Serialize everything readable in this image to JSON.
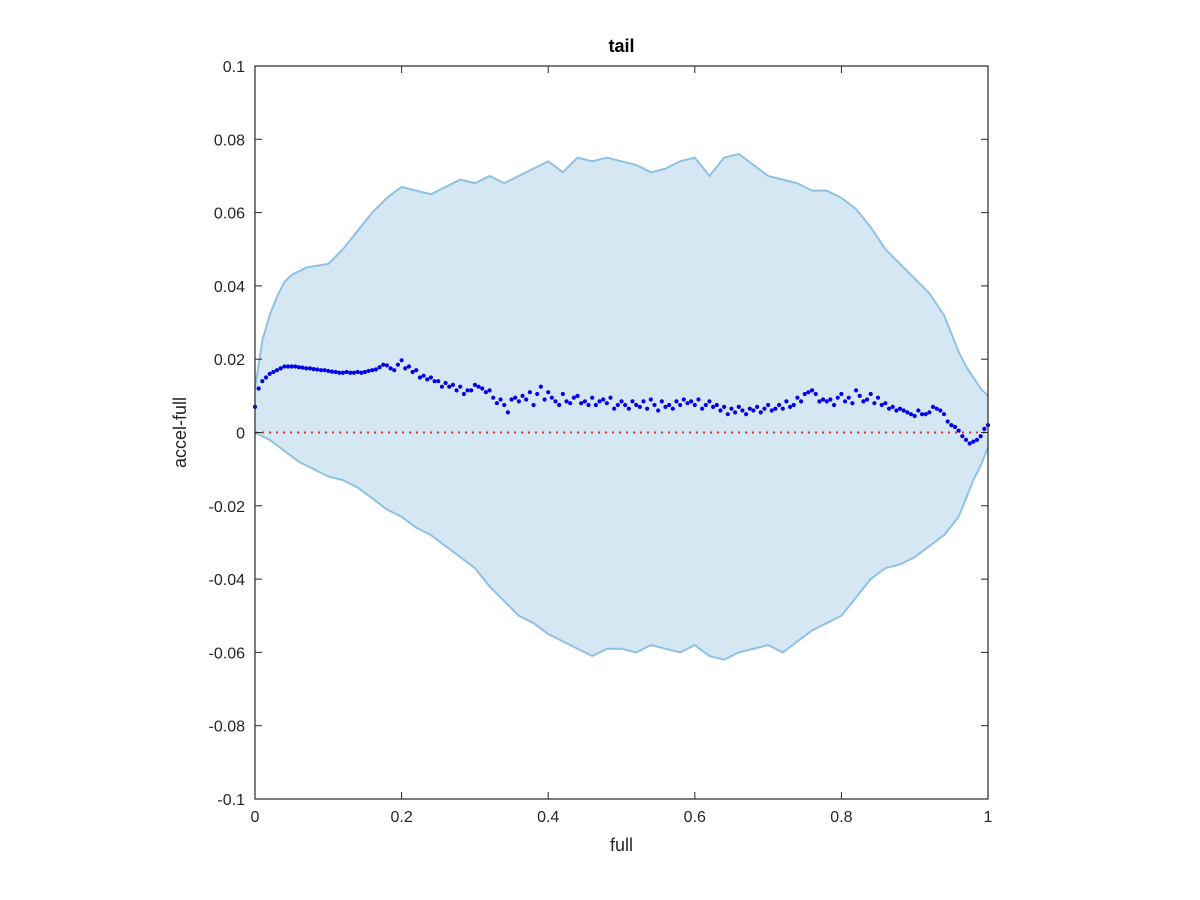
{
  "chart_data": {
    "type": "scatter",
    "title": "tail",
    "xlabel": "full",
    "ylabel": "accel-full",
    "xlim": [
      0,
      1
    ],
    "ylim": [
      -0.1,
      0.1
    ],
    "x_ticks": [
      "0",
      "0.2",
      "0.4",
      "0.6",
      "0.8",
      "1"
    ],
    "y_ticks": [
      "0.1",
      "0.08",
      "0.06",
      "0.04",
      "0.02",
      "0",
      "-0.02",
      "-0.04",
      "-0.06",
      "-0.08",
      "-0.1"
    ],
    "grid": false,
    "reference_line": {
      "y": 0,
      "style": "dotted",
      "color": "#e8312f"
    },
    "band": {
      "fill_color": "#d6e7f4",
      "edge_color": "#8ec2e2",
      "upper": [
        [
          0,
          0.012
        ],
        [
          0.01,
          0.025
        ],
        [
          0.02,
          0.032
        ],
        [
          0.03,
          0.037
        ],
        [
          0.04,
          0.041
        ],
        [
          0.05,
          0.043
        ],
        [
          0.07,
          0.045
        ],
        [
          0.1,
          0.046
        ],
        [
          0.12,
          0.05
        ],
        [
          0.14,
          0.055
        ],
        [
          0.16,
          0.06
        ],
        [
          0.18,
          0.064
        ],
        [
          0.2,
          0.067
        ],
        [
          0.22,
          0.066
        ],
        [
          0.24,
          0.065
        ],
        [
          0.26,
          0.067
        ],
        [
          0.28,
          0.069
        ],
        [
          0.3,
          0.068
        ],
        [
          0.32,
          0.07
        ],
        [
          0.34,
          0.068
        ],
        [
          0.36,
          0.07
        ],
        [
          0.38,
          0.072
        ],
        [
          0.4,
          0.074
        ],
        [
          0.42,
          0.071
        ],
        [
          0.44,
          0.075
        ],
        [
          0.46,
          0.074
        ],
        [
          0.48,
          0.075
        ],
        [
          0.5,
          0.074
        ],
        [
          0.52,
          0.073
        ],
        [
          0.54,
          0.071
        ],
        [
          0.56,
          0.072
        ],
        [
          0.58,
          0.074
        ],
        [
          0.6,
          0.075
        ],
        [
          0.62,
          0.07
        ],
        [
          0.64,
          0.075
        ],
        [
          0.66,
          0.076
        ],
        [
          0.68,
          0.073
        ],
        [
          0.7,
          0.07
        ],
        [
          0.72,
          0.069
        ],
        [
          0.74,
          0.068
        ],
        [
          0.76,
          0.066
        ],
        [
          0.78,
          0.066
        ],
        [
          0.8,
          0.064
        ],
        [
          0.82,
          0.061
        ],
        [
          0.84,
          0.056
        ],
        [
          0.86,
          0.05
        ],
        [
          0.88,
          0.046
        ],
        [
          0.9,
          0.042
        ],
        [
          0.92,
          0.038
        ],
        [
          0.94,
          0.032
        ],
        [
          0.96,
          0.022
        ],
        [
          0.97,
          0.018
        ],
        [
          0.98,
          0.015
        ],
        [
          0.99,
          0.012
        ],
        [
          1.0,
          0.01
        ]
      ],
      "lower": [
        [
          0,
          0.0
        ],
        [
          0.02,
          -0.002
        ],
        [
          0.04,
          -0.005
        ],
        [
          0.06,
          -0.008
        ],
        [
          0.08,
          -0.01
        ],
        [
          0.1,
          -0.012
        ],
        [
          0.12,
          -0.013
        ],
        [
          0.14,
          -0.015
        ],
        [
          0.16,
          -0.018
        ],
        [
          0.18,
          -0.021
        ],
        [
          0.2,
          -0.023
        ],
        [
          0.22,
          -0.026
        ],
        [
          0.24,
          -0.028
        ],
        [
          0.26,
          -0.031
        ],
        [
          0.28,
          -0.034
        ],
        [
          0.3,
          -0.037
        ],
        [
          0.32,
          -0.042
        ],
        [
          0.34,
          -0.046
        ],
        [
          0.36,
          -0.05
        ],
        [
          0.38,
          -0.052
        ],
        [
          0.4,
          -0.055
        ],
        [
          0.42,
          -0.057
        ],
        [
          0.44,
          -0.059
        ],
        [
          0.46,
          -0.061
        ],
        [
          0.48,
          -0.059
        ],
        [
          0.5,
          -0.059
        ],
        [
          0.52,
          -0.06
        ],
        [
          0.54,
          -0.058
        ],
        [
          0.56,
          -0.059
        ],
        [
          0.58,
          -0.06
        ],
        [
          0.6,
          -0.058
        ],
        [
          0.62,
          -0.061
        ],
        [
          0.64,
          -0.062
        ],
        [
          0.66,
          -0.06
        ],
        [
          0.68,
          -0.059
        ],
        [
          0.7,
          -0.058
        ],
        [
          0.72,
          -0.06
        ],
        [
          0.74,
          -0.057
        ],
        [
          0.76,
          -0.054
        ],
        [
          0.78,
          -0.052
        ],
        [
          0.8,
          -0.05
        ],
        [
          0.82,
          -0.045
        ],
        [
          0.84,
          -0.04
        ],
        [
          0.86,
          -0.037
        ],
        [
          0.88,
          -0.036
        ],
        [
          0.9,
          -0.034
        ],
        [
          0.92,
          -0.031
        ],
        [
          0.94,
          -0.028
        ],
        [
          0.96,
          -0.023
        ],
        [
          0.97,
          -0.018
        ],
        [
          0.98,
          -0.013
        ],
        [
          0.99,
          -0.009
        ],
        [
          1.0,
          -0.004
        ]
      ]
    },
    "series": [
      {
        "color": "#0000ee",
        "points": [
          [
            0.0,
            0.007
          ],
          [
            0.005,
            0.012
          ],
          [
            0.01,
            0.014
          ],
          [
            0.015,
            0.015
          ],
          [
            0.02,
            0.016
          ],
          [
            0.025,
            0.0165
          ],
          [
            0.03,
            0.017
          ],
          [
            0.035,
            0.0175
          ],
          [
            0.04,
            0.018
          ],
          [
            0.045,
            0.018
          ],
          [
            0.05,
            0.018
          ],
          [
            0.055,
            0.018
          ],
          [
            0.06,
            0.0178
          ],
          [
            0.065,
            0.0177
          ],
          [
            0.07,
            0.0175
          ],
          [
            0.075,
            0.0175
          ],
          [
            0.08,
            0.0173
          ],
          [
            0.085,
            0.0172
          ],
          [
            0.09,
            0.017
          ],
          [
            0.095,
            0.017
          ],
          [
            0.1,
            0.0168
          ],
          [
            0.105,
            0.0166
          ],
          [
            0.11,
            0.0165
          ],
          [
            0.115,
            0.0163
          ],
          [
            0.12,
            0.0163
          ],
          [
            0.125,
            0.0165
          ],
          [
            0.13,
            0.0163
          ],
          [
            0.135,
            0.0163
          ],
          [
            0.14,
            0.0165
          ],
          [
            0.145,
            0.0163
          ],
          [
            0.15,
            0.0165
          ],
          [
            0.155,
            0.0168
          ],
          [
            0.16,
            0.017
          ],
          [
            0.165,
            0.0172
          ],
          [
            0.17,
            0.0178
          ],
          [
            0.175,
            0.0185
          ],
          [
            0.18,
            0.0183
          ],
          [
            0.185,
            0.0175
          ],
          [
            0.19,
            0.017
          ],
          [
            0.195,
            0.0185
          ],
          [
            0.2,
            0.0197
          ],
          [
            0.205,
            0.0175
          ],
          [
            0.21,
            0.018
          ],
          [
            0.215,
            0.0165
          ],
          [
            0.22,
            0.017
          ],
          [
            0.225,
            0.015
          ],
          [
            0.23,
            0.0155
          ],
          [
            0.235,
            0.0145
          ],
          [
            0.24,
            0.015
          ],
          [
            0.245,
            0.014
          ],
          [
            0.25,
            0.014
          ],
          [
            0.255,
            0.0125
          ],
          [
            0.26,
            0.0135
          ],
          [
            0.265,
            0.0125
          ],
          [
            0.27,
            0.013
          ],
          [
            0.275,
            0.0115
          ],
          [
            0.28,
            0.0125
          ],
          [
            0.285,
            0.0105
          ],
          [
            0.29,
            0.0115
          ],
          [
            0.295,
            0.0115
          ],
          [
            0.3,
            0.013
          ],
          [
            0.305,
            0.0125
          ],
          [
            0.31,
            0.012
          ],
          [
            0.315,
            0.011
          ],
          [
            0.32,
            0.0115
          ],
          [
            0.325,
            0.0095
          ],
          [
            0.33,
            0.008
          ],
          [
            0.335,
            0.009
          ],
          [
            0.34,
            0.0075
          ],
          [
            0.345,
            0.0055
          ],
          [
            0.35,
            0.009
          ],
          [
            0.355,
            0.0095
          ],
          [
            0.36,
            0.0085
          ],
          [
            0.365,
            0.01
          ],
          [
            0.37,
            0.009
          ],
          [
            0.375,
            0.011
          ],
          [
            0.38,
            0.0075
          ],
          [
            0.385,
            0.0105
          ],
          [
            0.39,
            0.0125
          ],
          [
            0.395,
            0.009
          ],
          [
            0.4,
            0.011
          ],
          [
            0.405,
            0.0095
          ],
          [
            0.41,
            0.0085
          ],
          [
            0.415,
            0.0075
          ],
          [
            0.42,
            0.0105
          ],
          [
            0.425,
            0.0085
          ],
          [
            0.43,
            0.008
          ],
          [
            0.435,
            0.0095
          ],
          [
            0.44,
            0.01
          ],
          [
            0.445,
            0.008
          ],
          [
            0.45,
            0.0085
          ],
          [
            0.455,
            0.0075
          ],
          [
            0.46,
            0.0095
          ],
          [
            0.465,
            0.0075
          ],
          [
            0.47,
            0.0085
          ],
          [
            0.475,
            0.009
          ],
          [
            0.48,
            0.008
          ],
          [
            0.485,
            0.0095
          ],
          [
            0.49,
            0.0065
          ],
          [
            0.495,
            0.0075
          ],
          [
            0.5,
            0.0085
          ],
          [
            0.505,
            0.0075
          ],
          [
            0.51,
            0.0065
          ],
          [
            0.515,
            0.0085
          ],
          [
            0.52,
            0.0075
          ],
          [
            0.525,
            0.007
          ],
          [
            0.53,
            0.0085
          ],
          [
            0.535,
            0.0065
          ],
          [
            0.54,
            0.009
          ],
          [
            0.545,
            0.0075
          ],
          [
            0.55,
            0.006
          ],
          [
            0.555,
            0.0085
          ],
          [
            0.56,
            0.007
          ],
          [
            0.565,
            0.0075
          ],
          [
            0.57,
            0.0065
          ],
          [
            0.575,
            0.0085
          ],
          [
            0.58,
            0.0075
          ],
          [
            0.585,
            0.009
          ],
          [
            0.59,
            0.008
          ],
          [
            0.595,
            0.0085
          ],
          [
            0.6,
            0.0075
          ],
          [
            0.605,
            0.009
          ],
          [
            0.61,
            0.0065
          ],
          [
            0.615,
            0.0075
          ],
          [
            0.62,
            0.0085
          ],
          [
            0.625,
            0.007
          ],
          [
            0.63,
            0.0075
          ],
          [
            0.635,
            0.006
          ],
          [
            0.64,
            0.007
          ],
          [
            0.645,
            0.005
          ],
          [
            0.65,
            0.0065
          ],
          [
            0.655,
            0.0055
          ],
          [
            0.66,
            0.007
          ],
          [
            0.665,
            0.006
          ],
          [
            0.67,
            0.005
          ],
          [
            0.675,
            0.0065
          ],
          [
            0.68,
            0.006
          ],
          [
            0.685,
            0.007
          ],
          [
            0.69,
            0.0055
          ],
          [
            0.695,
            0.0065
          ],
          [
            0.7,
            0.0075
          ],
          [
            0.705,
            0.006
          ],
          [
            0.71,
            0.0065
          ],
          [
            0.715,
            0.0075
          ],
          [
            0.72,
            0.0065
          ],
          [
            0.725,
            0.0085
          ],
          [
            0.73,
            0.007
          ],
          [
            0.735,
            0.0075
          ],
          [
            0.74,
            0.0095
          ],
          [
            0.745,
            0.0085
          ],
          [
            0.75,
            0.0105
          ],
          [
            0.755,
            0.011
          ],
          [
            0.76,
            0.0115
          ],
          [
            0.765,
            0.0105
          ],
          [
            0.77,
            0.0085
          ],
          [
            0.775,
            0.009
          ],
          [
            0.78,
            0.0085
          ],
          [
            0.785,
            0.009
          ],
          [
            0.79,
            0.0075
          ],
          [
            0.795,
            0.0095
          ],
          [
            0.8,
            0.0105
          ],
          [
            0.805,
            0.0085
          ],
          [
            0.81,
            0.0095
          ],
          [
            0.815,
            0.008
          ],
          [
            0.82,
            0.0115
          ],
          [
            0.825,
            0.01
          ],
          [
            0.83,
            0.0085
          ],
          [
            0.835,
            0.009
          ],
          [
            0.84,
            0.0105
          ],
          [
            0.845,
            0.008
          ],
          [
            0.85,
            0.0095
          ],
          [
            0.855,
            0.0075
          ],
          [
            0.86,
            0.008
          ],
          [
            0.865,
            0.0065
          ],
          [
            0.87,
            0.007
          ],
          [
            0.875,
            0.006
          ],
          [
            0.88,
            0.0065
          ],
          [
            0.885,
            0.006
          ],
          [
            0.89,
            0.0055
          ],
          [
            0.895,
            0.005
          ],
          [
            0.9,
            0.0045
          ],
          [
            0.905,
            0.006
          ],
          [
            0.91,
            0.005
          ],
          [
            0.915,
            0.005
          ],
          [
            0.92,
            0.0055
          ],
          [
            0.925,
            0.007
          ],
          [
            0.93,
            0.0065
          ],
          [
            0.935,
            0.006
          ],
          [
            0.94,
            0.005
          ],
          [
            0.945,
            0.003
          ],
          [
            0.95,
            0.002
          ],
          [
            0.955,
            0.0015
          ],
          [
            0.96,
            0.0005
          ],
          [
            0.965,
            -0.001
          ],
          [
            0.97,
            -0.002
          ],
          [
            0.975,
            -0.003
          ],
          [
            0.98,
            -0.0025
          ],
          [
            0.985,
            -0.002
          ],
          [
            0.99,
            -0.001
          ],
          [
            0.995,
            0.001
          ],
          [
            1.0,
            0.002
          ]
        ]
      }
    ]
  }
}
